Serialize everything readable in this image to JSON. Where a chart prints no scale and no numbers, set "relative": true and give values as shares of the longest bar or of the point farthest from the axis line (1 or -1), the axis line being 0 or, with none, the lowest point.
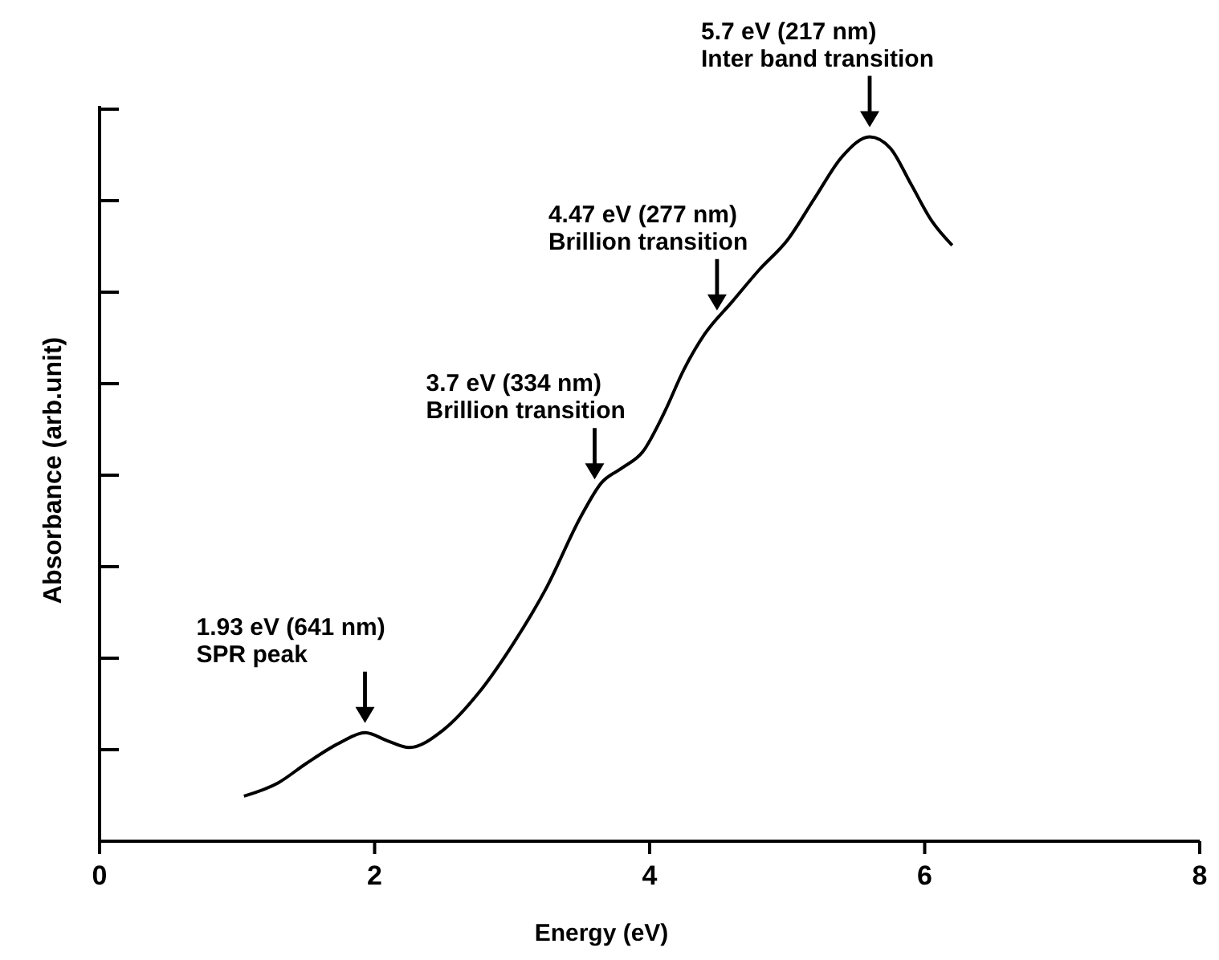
{
  "chart_data": {
    "type": "line",
    "xlabel": "Energy (eV)",
    "ylabel": "Absorbance (arb.unit)",
    "relative": true,
    "xlim": [
      0,
      8
    ],
    "xticks": [
      0,
      2,
      4,
      6,
      8
    ],
    "grid": false,
    "x": [
      1.05,
      1.3,
      1.5,
      1.75,
      1.93,
      2.1,
      2.25,
      2.5,
      2.75,
      3.0,
      3.25,
      3.5,
      3.65,
      3.8,
      3.95,
      4.1,
      4.25,
      4.4,
      4.6,
      4.8,
      5.0,
      5.2,
      5.4,
      5.6,
      5.75,
      5.9,
      6.05,
      6.2
    ],
    "series": [
      {
        "color": "#000000",
        "values": [
          0.064,
          0.083,
          0.11,
          0.14,
          0.154,
          0.142,
          0.133,
          0.158,
          0.209,
          0.278,
          0.36,
          0.461,
          0.509,
          0.53,
          0.553,
          0.606,
          0.67,
          0.72,
          0.766,
          0.812,
          0.853,
          0.913,
          0.972,
          1,
          0.984,
          0.933,
          0.881,
          0.846
        ]
      }
    ],
    "annotations": [
      {
        "text": "1.93 eV (641 nm)\nSPR peak",
        "x": 1.93,
        "y": 0.154
      },
      {
        "text": "3.7 eV (334 nm)\nBrillion transition",
        "x": 3.6,
        "y": 0.5
      },
      {
        "text": "4.47 eV (277 nm)\nBrillion transition",
        "x": 4.49,
        "y": 0.74
      },
      {
        "text": "5.7 eV (217 nm)\nInter band transition",
        "x": 5.6,
        "y": 1
      }
    ]
  }
}
